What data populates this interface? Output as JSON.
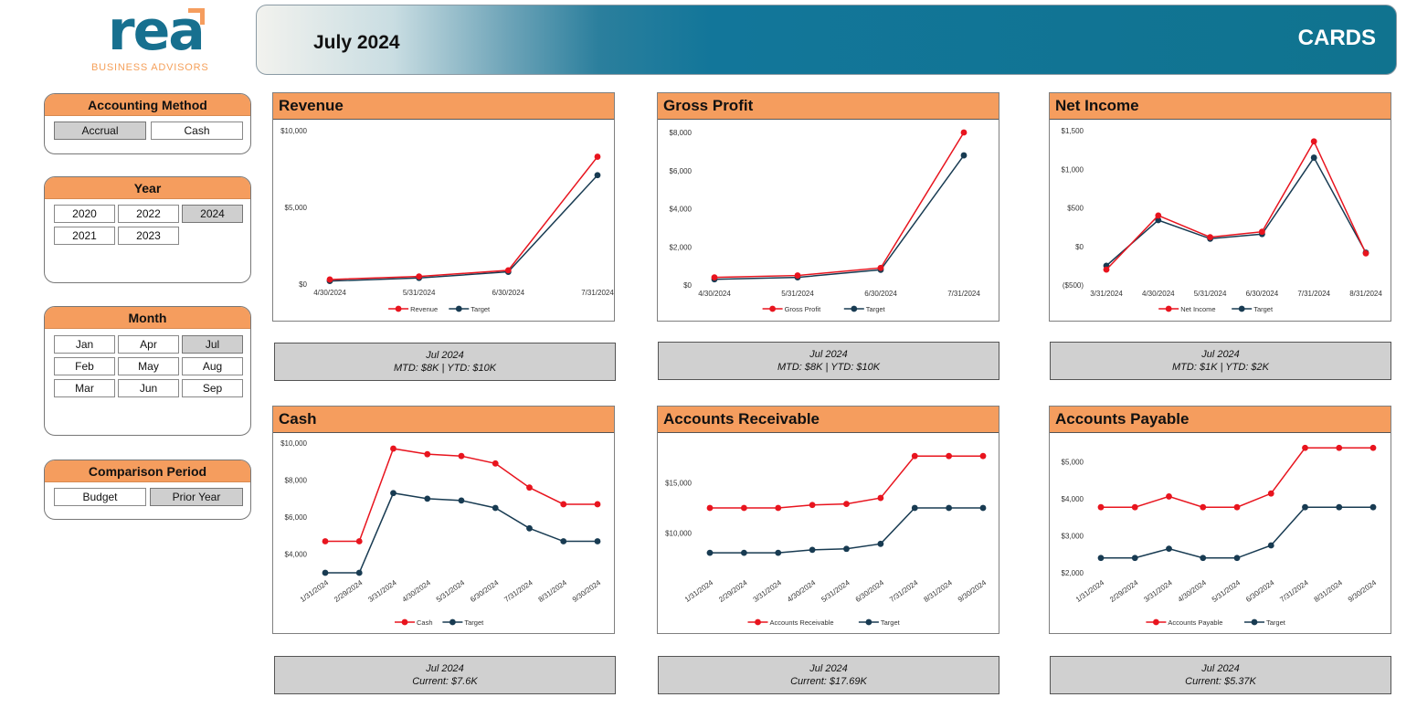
{
  "logo": {
    "word": "rea",
    "tagline": "BUSINESS ADVISORS"
  },
  "banner": {
    "period": "July 2024",
    "view": "CARDS"
  },
  "colors": {
    "actual": "#e8141e",
    "target": "#183b52",
    "header": "#f59d5e",
    "selected": "#cfcfcf"
  },
  "filters": {
    "accounting": {
      "title": "Accounting Method",
      "options": [
        "Accrual",
        "Cash"
      ],
      "selected": "Accrual"
    },
    "year": {
      "title": "Year",
      "options": [
        "2020",
        "2022",
        "2024",
        "2021",
        "2023"
      ],
      "selected": "2024"
    },
    "month": {
      "title": "Month",
      "options": [
        "Jan",
        "Apr",
        "Jul",
        "Feb",
        "May",
        "Aug",
        "Mar",
        "Jun",
        "Sep"
      ],
      "selected": "Jul"
    },
    "comparison": {
      "title": "Comparison Period",
      "options": [
        "Budget",
        "Prior Year"
      ],
      "selected": "Prior Year"
    }
  },
  "cards": [
    {
      "title": "Revenue",
      "summary_line1": "Jul 2024",
      "summary_line2": "MTD: $8K | YTD: $10K"
    },
    {
      "title": "Gross Profit",
      "summary_line1": "Jul 2024",
      "summary_line2": "MTD: $8K | YTD: $10K"
    },
    {
      "title": "Net Income",
      "summary_line1": "Jul 2024",
      "summary_line2": "MTD: $1K | YTD: $2K"
    },
    {
      "title": "Cash",
      "summary_line1": "Jul 2024",
      "summary_line2": "Current: $7.6K"
    },
    {
      "title": "Accounts Receivable",
      "summary_line1": "Jul 2024",
      "summary_line2": "Current: $17.69K"
    },
    {
      "title": "Accounts Payable",
      "summary_line1": "Jul 2024",
      "summary_line2": "Current: $5.37K"
    }
  ],
  "chart_data": [
    {
      "type": "line",
      "title": "Revenue",
      "categories": [
        "4/30/2024",
        "5/31/2024",
        "6/30/2024",
        "7/31/2024"
      ],
      "series": [
        {
          "name": "Revenue",
          "values": [
            300,
            500,
            900,
            8300
          ]
        },
        {
          "name": "Target",
          "values": [
            200,
            400,
            800,
            7100
          ]
        }
      ],
      "ylim": [
        0,
        10000
      ],
      "yticks": [
        0,
        5000,
        10000
      ],
      "ytick_labels": [
        "$0",
        "$5,000",
        "$10,000"
      ],
      "rotate_x": false
    },
    {
      "type": "line",
      "title": "Gross Profit",
      "categories": [
        "4/30/2024",
        "5/31/2024",
        "6/30/2024",
        "7/31/2024"
      ],
      "series": [
        {
          "name": "Gross Profit",
          "values": [
            400,
            500,
            900,
            8000
          ]
        },
        {
          "name": "Target",
          "values": [
            300,
            400,
            800,
            6800
          ]
        }
      ],
      "ylim": [
        0,
        8000
      ],
      "yticks": [
        0,
        2000,
        4000,
        6000,
        8000
      ],
      "ytick_labels": [
        "$0",
        "$2,000",
        "$4,000",
        "$6,000",
        "$8,000"
      ],
      "rotate_x": false
    },
    {
      "type": "line",
      "title": "Net Income",
      "categories": [
        "3/31/2024",
        "4/30/2024",
        "5/31/2024",
        "6/30/2024",
        "7/31/2024",
        "8/31/2024"
      ],
      "series": [
        {
          "name": "Net Income",
          "values": [
            -300,
            400,
            120,
            190,
            1360,
            -90
          ]
        },
        {
          "name": "Target",
          "values": [
            -250,
            340,
            100,
            160,
            1150,
            -80
          ]
        }
      ],
      "ylim": [
        -500,
        1500
      ],
      "yticks": [
        -500,
        0,
        500,
        1000,
        1500
      ],
      "ytick_labels": [
        "($500)",
        "$0",
        "$500",
        "$1,000",
        "$1,500"
      ],
      "rotate_x": false
    },
    {
      "type": "line",
      "title": "Cash",
      "categories": [
        "1/31/2024",
        "2/29/2024",
        "3/31/2024",
        "4/30/2024",
        "5/31/2024",
        "6/30/2024",
        "7/31/2024",
        "8/31/2024",
        "9/30/2024"
      ],
      "series": [
        {
          "name": "Cash",
          "values": [
            4700,
            4700,
            9700,
            9400,
            9300,
            8900,
            7600,
            6700,
            6700
          ]
        },
        {
          "name": "Target",
          "values": [
            3000,
            3000,
            7300,
            7000,
            6900,
            6500,
            5400,
            4700,
            4700
          ]
        }
      ],
      "ylim": [
        3000,
        10000
      ],
      "yticks": [
        4000,
        6000,
        8000,
        10000
      ],
      "ytick_labels": [
        "$4,000",
        "$6,000",
        "$8,000",
        "$10,000"
      ],
      "rotate_x": true
    },
    {
      "type": "line",
      "title": "Accounts Receivable",
      "categories": [
        "1/31/2024",
        "2/29/2024",
        "3/31/2024",
        "4/30/2024",
        "5/31/2024",
        "6/30/2024",
        "7/31/2024",
        "8/31/2024",
        "9/30/2024"
      ],
      "series": [
        {
          "name": "Accounts Receivable",
          "values": [
            12500,
            12500,
            12500,
            12800,
            12900,
            13500,
            17700,
            17700,
            17700
          ]
        },
        {
          "name": "Target",
          "values": [
            8000,
            8000,
            8000,
            8300,
            8400,
            8900,
            12500,
            12500,
            12500
          ]
        }
      ],
      "ylim": [
        6000,
        19000
      ],
      "yticks": [
        10000,
        15000
      ],
      "ytick_labels": [
        "$10,000",
        "$15,000"
      ],
      "rotate_x": true
    },
    {
      "type": "line",
      "title": "Accounts Payable",
      "categories": [
        "1/31/2024",
        "2/29/2024",
        "3/31/2024",
        "4/30/2024",
        "5/31/2024",
        "6/30/2024",
        "7/31/2024",
        "8/31/2024",
        "9/30/2024"
      ],
      "series": [
        {
          "name": "Accounts Payable",
          "values": [
            3770,
            3770,
            4060,
            3770,
            3770,
            4140,
            5370,
            5370,
            5370
          ]
        },
        {
          "name": "Target",
          "values": [
            2400,
            2400,
            2650,
            2400,
            2400,
            2740,
            3770,
            3770,
            3770
          ]
        }
      ],
      "ylim": [
        2000,
        5500
      ],
      "yticks": [
        2000,
        3000,
        4000,
        5000
      ],
      "ytick_labels": [
        "$2,000",
        "$3,000",
        "$4,000",
        "$5,000"
      ],
      "rotate_x": true
    }
  ]
}
